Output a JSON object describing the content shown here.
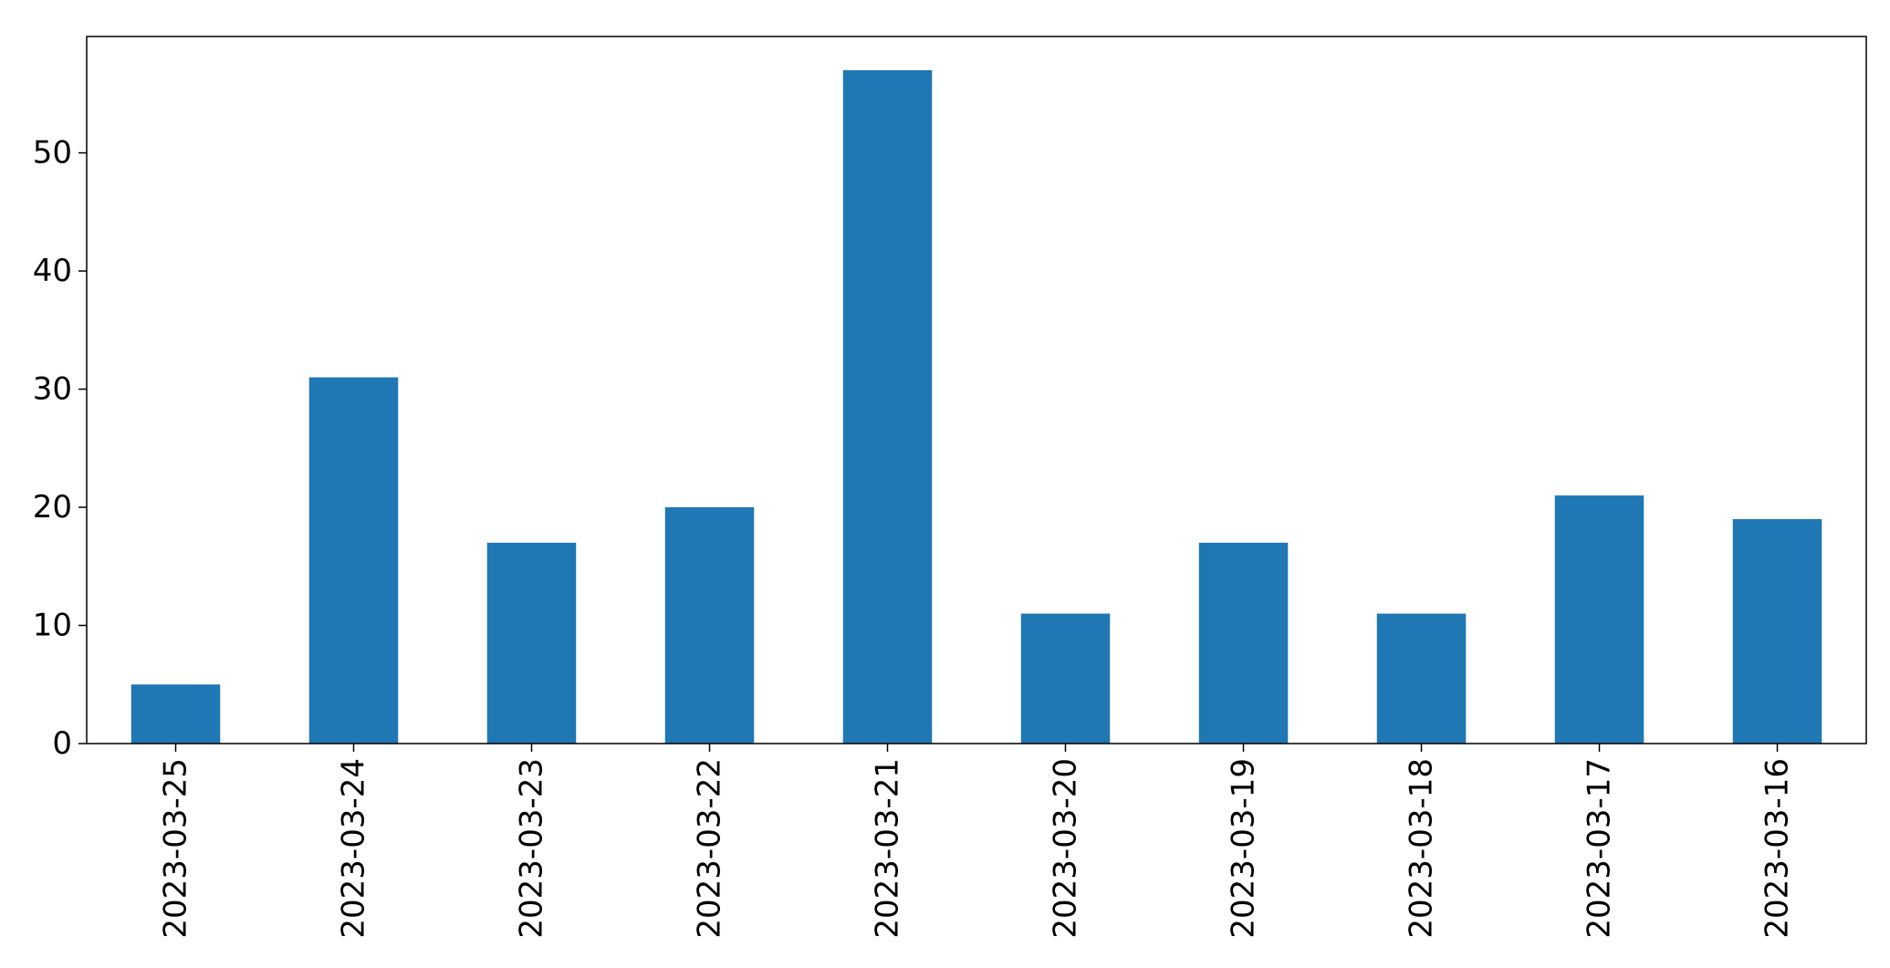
{
  "chart_data": {
    "type": "bar",
    "title": "",
    "xlabel": "",
    "ylabel": "",
    "categories": [
      "2023-03-25",
      "2023-03-24",
      "2023-03-23",
      "2023-03-22",
      "2023-03-21",
      "2023-03-20",
      "2023-03-19",
      "2023-03-18",
      "2023-03-17",
      "2023-03-16"
    ],
    "values": [
      5,
      31,
      17,
      20,
      57,
      11,
      17,
      11,
      21,
      19
    ],
    "ylim": [
      0,
      59.85
    ],
    "yticks": [
      0,
      10,
      20,
      30,
      40,
      50
    ],
    "bar_color": "#1f77b4",
    "grid": false,
    "legend": "none",
    "x_tick_rotation": "vertical"
  }
}
